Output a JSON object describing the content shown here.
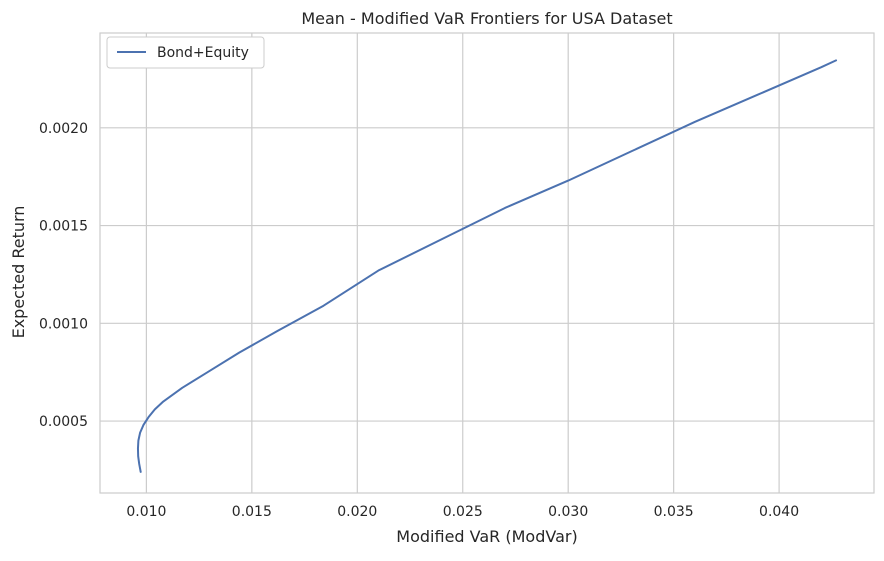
{
  "chart_data": {
    "type": "line",
    "title": "Mean - Modified VaR Frontiers for USA Dataset",
    "xlabel": "Modified VaR (ModVar)",
    "ylabel": "Expected Return",
    "xlim": [
      0.0078,
      0.0445
    ],
    "ylim": [
      0.000132,
      0.002485
    ],
    "xticks": [
      0.01,
      0.015,
      0.02,
      0.025,
      0.03,
      0.035,
      0.04
    ],
    "xtick_labels": [
      "0.010",
      "0.015",
      "0.020",
      "0.025",
      "0.030",
      "0.035",
      "0.040"
    ],
    "yticks": [
      0.0005,
      0.001,
      0.0015,
      0.002
    ],
    "ytick_labels": [
      "0.0005",
      "0.0010",
      "0.0015",
      "0.0020"
    ],
    "grid": true,
    "legend_position": "top-left",
    "series": [
      {
        "name": "Bond+Equity",
        "color": "#4c72b0",
        "x": [
          0.00973,
          0.00966,
          0.00961,
          0.0096,
          0.00962,
          0.0097,
          0.00986,
          0.0101,
          0.0104,
          0.0108,
          0.0117,
          0.0129,
          0.0144,
          0.0162,
          0.0184,
          0.021,
          0.024,
          0.027,
          0.03,
          0.033,
          0.036,
          0.039,
          0.042,
          0.0427
        ],
        "y": [
          0.00024,
          0.00028,
          0.00032,
          0.00036,
          0.0004,
          0.00044,
          0.00048,
          0.00052,
          0.00056,
          0.0006,
          0.00067,
          0.00075,
          0.00085,
          0.00096,
          0.00109,
          0.00127,
          0.00143,
          0.00159,
          0.00173,
          0.00188,
          0.00203,
          0.00217,
          0.00231,
          0.002345
        ]
      }
    ]
  }
}
